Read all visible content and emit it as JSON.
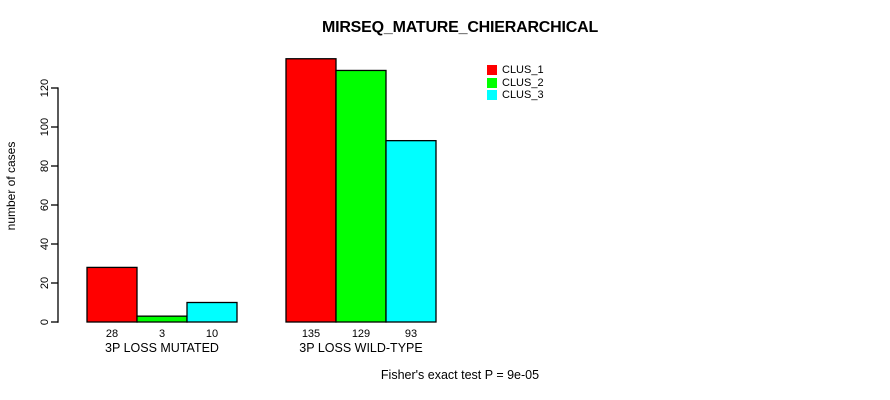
{
  "title": "MIRSEQ_MATURE_CHIERARCHICAL",
  "footer": "Fisher's exact test P = 9e-05",
  "y_axis": {
    "label": "number of cases",
    "ticks": [
      0,
      20,
      40,
      60,
      80,
      100,
      120
    ]
  },
  "legend": {
    "items": [
      {
        "label": "CLUS_1",
        "color": "#ff0000"
      },
      {
        "label": "CLUS_2",
        "color": "#00ff00"
      },
      {
        "label": "CLUS_3",
        "color": "#00ffff"
      }
    ]
  },
  "chart_data": {
    "type": "bar",
    "title": "MIRSEQ_MATURE_CHIERARCHICAL",
    "categories": [
      "3P LOSS MUTATED",
      "3P LOSS WILD-TYPE"
    ],
    "series": [
      {
        "name": "CLUS_1",
        "color": "#ff0000",
        "values": [
          28,
          135
        ]
      },
      {
        "name": "CLUS_2",
        "color": "#00ff00",
        "values": [
          3,
          129
        ]
      },
      {
        "name": "CLUS_3",
        "color": "#00ffff",
        "values": [
          10,
          93
        ]
      }
    ],
    "xlabel": "",
    "ylabel": "number of cases",
    "yticks": [
      0,
      20,
      40,
      60,
      80,
      100,
      120
    ],
    "ylim": [
      0,
      139
    ],
    "grid": false,
    "bar_border_color": "#000000",
    "bar_value_labels_shown": true,
    "legend_position": "top-right",
    "annotation": "Fisher's exact test P = 9e-05"
  }
}
